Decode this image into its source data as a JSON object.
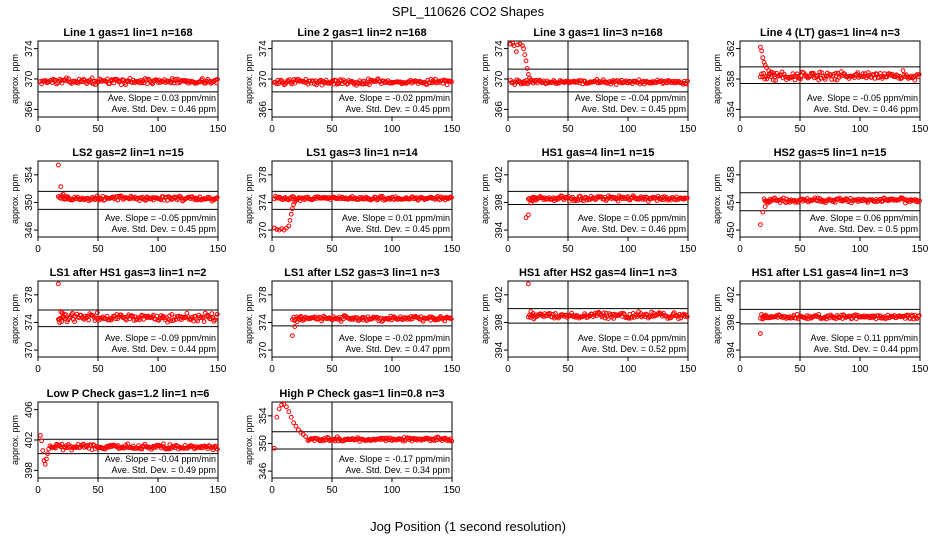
{
  "figure": {
    "title": "SPL_110626  CO2 Shapes",
    "xlabel": "Jog Position (1 second resolution)"
  },
  "colors": {
    "points": "#ff0000",
    "axes": "#000000"
  },
  "chart_data": [
    {
      "type": "scatter",
      "title": "Line 1 gas=1 lin=1 n=168",
      "ylabel": "approx. ppm",
      "xlim": [
        0,
        150
      ],
      "ylim": [
        365,
        375
      ],
      "xticks": [
        0,
        50,
        100,
        150
      ],
      "yticks": [
        366,
        370,
        374
      ],
      "ref_lines": [
        371.3,
        368.3
      ],
      "ann_slope": "Ave. Slope = 0.03  ppm/min",
      "ann_sd": "Ave. Std. Dev. = 0.46  ppm",
      "profile": {
        "x0": 2,
        "x1": 150,
        "base": 369.7,
        "noise": 0.25,
        "pts": []
      }
    },
    {
      "type": "scatter",
      "title": "Line 2 gas=1 lin=2 n=168",
      "ylabel": "approx. ppm",
      "xlim": [
        0,
        150
      ],
      "ylim": [
        365,
        375
      ],
      "xticks": [
        0,
        50,
        100,
        150
      ],
      "yticks": [
        366,
        370,
        374
      ],
      "ref_lines": [
        371.3,
        368.3
      ],
      "ann_slope": "Ave. Slope = -0.02  ppm/min",
      "ann_sd": "Ave. Std. Dev. = 0.45  ppm",
      "profile": {
        "x0": 2,
        "x1": 150,
        "base": 369.6,
        "noise": 0.25,
        "pts": []
      }
    },
    {
      "type": "scatter",
      "title": "Line 3 gas=1 lin=3 n=168",
      "ylabel": "approx. ppm",
      "xlim": [
        0,
        150
      ],
      "ylim": [
        365,
        375
      ],
      "xticks": [
        0,
        50,
        100,
        150
      ],
      "yticks": [
        366,
        370,
        374
      ],
      "ref_lines": [
        371.3,
        368.3
      ],
      "ann_slope": "Ave. Slope = -0.04  ppm/min",
      "ann_sd": "Ave. Std. Dev. = 0.45  ppm",
      "profile": {
        "x0": 2,
        "x1": 150,
        "base": 369.6,
        "noise": 0.2,
        "pts": [
          [
            2,
            374.6
          ],
          [
            4,
            374.7
          ],
          [
            5,
            374.4
          ],
          [
            7,
            373.6
          ],
          [
            8,
            374.5
          ],
          [
            10,
            374.6
          ],
          [
            12,
            374.4
          ],
          [
            13,
            374.0
          ],
          [
            14,
            373.2
          ],
          [
            15,
            372.4
          ],
          [
            16,
            371.4
          ],
          [
            17,
            370.6
          ],
          [
            18,
            370.1
          ],
          [
            19,
            369.9
          ]
        ]
      }
    },
    {
      "type": "scatter",
      "title": "Line 4 (LT) gas=1 lin=4 n=3",
      "ylabel": "approx. ppm",
      "xlim": [
        0,
        150
      ],
      "ylim": [
        353,
        363
      ],
      "xticks": [
        0,
        50,
        100,
        150
      ],
      "yticks": [
        354,
        358,
        362
      ],
      "ref_lines": [
        359.6,
        357.4
      ],
      "ann_slope": "Ave. Slope = -0.05  ppm/min",
      "ann_sd": "Ave. Std. Dev. = 0.46  ppm",
      "profile": {
        "x0": 17,
        "x1": 150,
        "base": 358.4,
        "noise": 0.4,
        "pts": [
          [
            17,
            362.2
          ],
          [
            18,
            361.7
          ],
          [
            19,
            360.8
          ],
          [
            20,
            360.2
          ],
          [
            21,
            359.8
          ],
          [
            22,
            359.5
          ],
          [
            24,
            359.1
          ],
          [
            26,
            358.9
          ],
          [
            28,
            358.8
          ]
        ]
      }
    },
    {
      "type": "scatter",
      "title": "LS2 gas=2 lin=1 n=15",
      "ylabel": "approx. ppm",
      "xlim": [
        0,
        150
      ],
      "ylim": [
        345,
        356
      ],
      "xticks": [
        0,
        50,
        100,
        150
      ],
      "yticks": [
        346,
        350,
        354
      ],
      "ref_lines": [
        351.6,
        349.0
      ],
      "ann_slope": "Ave. Slope = -0.05  ppm/min",
      "ann_sd": "Ave. Std. Dev. = 0.45  ppm",
      "profile": {
        "x0": 17,
        "x1": 150,
        "base": 350.6,
        "noise": 0.25,
        "pts": [
          [
            17,
            355.4
          ],
          [
            19,
            352.3
          ],
          [
            21,
            351.2
          ],
          [
            23,
            350.9
          ],
          [
            25,
            350.8
          ]
        ]
      }
    },
    {
      "type": "scatter",
      "title": "LS1 gas=3 lin=1 n=14",
      "ylabel": "approx. ppm",
      "xlim": [
        0,
        150
      ],
      "ylim": [
        369,
        380
      ],
      "xticks": [
        0,
        50,
        100,
        150
      ],
      "yticks": [
        370,
        374,
        378
      ],
      "ref_lines": [
        375.6,
        373.0
      ],
      "ann_slope": "Ave. Slope = 0.01  ppm/min",
      "ann_sd": "Ave. Std. Dev. = 0.45  ppm",
      "profile": {
        "x0": 2,
        "x1": 150,
        "base": 374.6,
        "noise": 0.2,
        "pts": [
          [
            2,
            370.3
          ],
          [
            4,
            370.1
          ],
          [
            6,
            370.0
          ],
          [
            8,
            370.2
          ],
          [
            10,
            370.0
          ],
          [
            12,
            370.3
          ],
          [
            14,
            370.6
          ],
          [
            15,
            371.4
          ],
          [
            16,
            372.3
          ],
          [
            17,
            373.1
          ],
          [
            18,
            373.7
          ],
          [
            19,
            374.1
          ],
          [
            20,
            374.4
          ]
        ]
      }
    },
    {
      "type": "scatter",
      "title": "HS1 gas=4 lin=1 n=15",
      "ylabel": "approx. ppm",
      "xlim": [
        0,
        150
      ],
      "ylim": [
        393,
        404
      ],
      "xticks": [
        0,
        50,
        100,
        150
      ],
      "yticks": [
        394,
        398,
        402
      ],
      "ref_lines": [
        399.6,
        397.7
      ],
      "ann_slope": "Ave. Slope = 0.05  ppm/min",
      "ann_sd": "Ave. Std. Dev. = 0.46  ppm",
      "profile": {
        "x0": 17,
        "x1": 150,
        "base": 398.6,
        "noise": 0.25,
        "pts": [
          [
            15,
            395.8
          ],
          [
            17,
            396.2
          ],
          [
            19,
            397.9
          ],
          [
            21,
            398.3
          ],
          [
            23,
            398.5
          ]
        ]
      }
    },
    {
      "type": "scatter",
      "title": "HS2 gas=5 lin=1 n=15",
      "ylabel": "approx. ppm",
      "xlim": [
        0,
        150
      ],
      "ylim": [
        449,
        460
      ],
      "xticks": [
        0,
        50,
        100,
        150
      ],
      "yticks": [
        450,
        454,
        458
      ],
      "ref_lines": [
        455.4,
        452.8
      ],
      "ann_slope": "Ave. Slope = 0.06  ppm/min",
      "ann_sd": "Ave. Std. Dev. = 0.5  ppm",
      "profile": {
        "x0": 20,
        "x1": 150,
        "base": 454.3,
        "noise": 0.25,
        "pts": [
          [
            17,
            450.8
          ],
          [
            19,
            452.6
          ],
          [
            21,
            453.4
          ],
          [
            23,
            453.9
          ],
          [
            25,
            454.1
          ]
        ]
      }
    },
    {
      "type": "scatter",
      "title": "LS1 after HS1 gas=3 lin=1 n=2",
      "ylabel": "approx. ppm",
      "xlim": [
        0,
        150
      ],
      "ylim": [
        369,
        380
      ],
      "xticks": [
        0,
        50,
        100,
        150
      ],
      "yticks": [
        370,
        374,
        378
      ],
      "ref_lines": [
        375.8,
        373.4
      ],
      "ann_slope": "Ave. Slope = -0.09  ppm/min",
      "ann_sd": "Ave. Std. Dev. = 0.44  ppm",
      "profile": {
        "x0": 17,
        "x1": 150,
        "base": 374.7,
        "noise": 0.4,
        "pts": [
          [
            17,
            379.6
          ],
          [
            18,
            374.0
          ],
          [
            19,
            375.6
          ],
          [
            20,
            375.4
          ],
          [
            22,
            375.2
          ]
        ]
      }
    },
    {
      "type": "scatter",
      "title": "LS1 after LS2 gas=3 lin=1 n=3",
      "ylabel": "approx. ppm",
      "xlim": [
        0,
        150
      ],
      "ylim": [
        369,
        380
      ],
      "xticks": [
        0,
        50,
        100,
        150
      ],
      "yticks": [
        370,
        374,
        378
      ],
      "ref_lines": [
        375.8,
        373.5
      ],
      "ann_slope": "Ave. Slope = -0.02  ppm/min",
      "ann_sd": "Ave. Std. Dev. = 0.47  ppm",
      "profile": {
        "x0": 17,
        "x1": 150,
        "base": 374.6,
        "noise": 0.25,
        "pts": [
          [
            17,
            372.1
          ],
          [
            19,
            373.4
          ],
          [
            21,
            374.1
          ],
          [
            23,
            374.4
          ]
        ]
      }
    },
    {
      "type": "scatter",
      "title": "HS1 after HS2 gas=4 lin=1 n=3",
      "ylabel": "approx. ppm",
      "xlim": [
        0,
        150
      ],
      "ylim": [
        393,
        404
      ],
      "xticks": [
        0,
        50,
        100,
        150
      ],
      "yticks": [
        394,
        398,
        402
      ],
      "ref_lines": [
        400.0,
        397.9
      ],
      "ann_slope": "Ave. Slope = 0.04  ppm/min",
      "ann_sd": "Ave. Std. Dev. = 0.52  ppm",
      "profile": {
        "x0": 17,
        "x1": 150,
        "base": 399.0,
        "noise": 0.3,
        "pts": [
          [
            17,
            403.6
          ],
          [
            19,
            399.6
          ],
          [
            21,
            399.3
          ]
        ]
      }
    },
    {
      "type": "scatter",
      "title": "HS1 after LS1 gas=4 lin=1 n=3",
      "ylabel": "approx. ppm",
      "xlim": [
        0,
        150
      ],
      "ylim": [
        393,
        404
      ],
      "xticks": [
        0,
        50,
        100,
        150
      ],
      "yticks": [
        394,
        398,
        402
      ],
      "ref_lines": [
        399.9,
        397.8
      ],
      "ann_slope": "Ave. Slope = 0.11  ppm/min",
      "ann_sd": "Ave. Std. Dev. = 0.44  ppm",
      "profile": {
        "x0": 17,
        "x1": 150,
        "base": 398.8,
        "noise": 0.25,
        "pts": [
          [
            17,
            396.4
          ],
          [
            19,
            398.5
          ],
          [
            21,
            398.7
          ]
        ]
      }
    },
    {
      "type": "scatter",
      "title": "Low P Check gas=1.2 lin=1 n=6",
      "ylabel": "approx. ppm",
      "xlim": [
        0,
        150
      ],
      "ylim": [
        397,
        407
      ],
      "xticks": [
        0,
        50,
        100,
        150
      ],
      "yticks": [
        398,
        402,
        406
      ],
      "ref_lines": [
        402.1,
        400.2
      ],
      "ann_slope": "Ave. Slope = -0.04  ppm/min",
      "ann_sd": "Ave. Std. Dev. = 0.49  ppm",
      "profile": {
        "x0": 10,
        "x1": 150,
        "base": 401.1,
        "noise": 0.25,
        "pts": [
          [
            2,
            402.6
          ],
          [
            3,
            401.9
          ],
          [
            4,
            400.6
          ],
          [
            5,
            399.3
          ],
          [
            6,
            398.8
          ],
          [
            7,
            399.5
          ],
          [
            8,
            400.2
          ],
          [
            9,
            400.8
          ]
        ]
      }
    },
    {
      "type": "scatter",
      "title": "High P Check gas=1 lin=0.8 n=3",
      "ylabel": "approx. ppm",
      "xlim": [
        0,
        150
      ],
      "ylim": [
        345,
        356
      ],
      "xticks": [
        0,
        50,
        100,
        150
      ],
      "yticks": [
        346,
        350,
        354
      ],
      "ref_lines": [
        351.7,
        349.2
      ],
      "ann_slope": "Ave. Slope = -0.17  ppm/min",
      "ann_sd": "Ave. Std. Dev. = 0.34  ppm",
      "profile": {
        "x0": 30,
        "x1": 150,
        "base": 350.6,
        "noise": 0.2,
        "pts": [
          [
            2,
            349.3
          ],
          [
            4,
            353.8
          ],
          [
            6,
            355.0
          ],
          [
            8,
            355.6
          ],
          [
            10,
            355.7
          ],
          [
            12,
            355.3
          ],
          [
            14,
            354.6
          ],
          [
            16,
            353.8
          ],
          [
            18,
            353.0
          ],
          [
            20,
            352.5
          ],
          [
            22,
            352.0
          ],
          [
            24,
            351.6
          ],
          [
            26,
            351.3
          ],
          [
            28,
            351.0
          ]
        ]
      }
    }
  ]
}
